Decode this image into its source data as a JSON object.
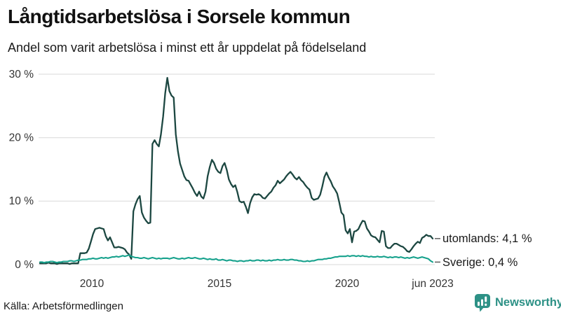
{
  "header": {
    "title": "Långtidsarbetslösa i Sorsele kommun",
    "subtitle": "Andel som varit arbetslösa i minst ett år uppdelat på födelseland"
  },
  "footer": {
    "source": "Källa: Arbetsförmedlingen",
    "brand": "Newsworthy",
    "brand_color": "#2d9186"
  },
  "chart_data": {
    "type": "line",
    "title": "Långtidsarbetslösa i Sorsele kommun",
    "subtitle": "Andel som varit arbetslösa i minst ett år uppdelat på födelseland",
    "unit": "%",
    "frequency": "monthly",
    "x_start": "2008-01",
    "x_end": "2023-06",
    "ylim": [
      0,
      30
    ],
    "grid": "horizontal",
    "legend_position": "end-of-line-labels",
    "yticks": [
      "30 %",
      "20 %",
      "10 %",
      "0 %"
    ],
    "xticks": [
      "2010",
      "2015",
      "2020",
      "jun 2023"
    ],
    "series": [
      {
        "id": "utomlands",
        "name": "utomlands",
        "end_label": "utomlands: 4,1 %",
        "last_value": "4,1 %",
        "color": "#1c4741",
        "values": [
          0.2,
          0.2,
          0.2,
          0.2,
          0.3,
          0.2,
          0.2,
          0.2,
          0.1,
          0.2,
          0.2,
          0.2,
          0.2,
          0.2,
          0.1,
          0.2,
          0.2,
          0.2,
          0.2,
          1.8,
          1.8,
          1.8,
          1.9,
          2.5,
          3.6,
          4.8,
          5.6,
          5.7,
          5.8,
          5.7,
          5.6,
          4.5,
          3.8,
          4.3,
          3.5,
          2.7,
          2.7,
          2.8,
          2.7,
          2.6,
          2.4,
          1.9,
          1.6,
          0.9,
          8.4,
          9.5,
          10.3,
          10.8,
          8.2,
          7.4,
          6.9,
          6.5,
          6.6,
          19.0,
          19.6,
          19.0,
          18.6,
          20.5,
          23.3,
          27.0,
          29.4,
          27.3,
          26.6,
          26.3,
          20.5,
          17.8,
          15.9,
          14.9,
          13.9,
          13.3,
          13.2,
          12.6,
          12.0,
          11.3,
          10.8,
          11.5,
          10.7,
          10.4,
          11.5,
          13.9,
          15.4,
          16.5,
          16.0,
          15.1,
          14.6,
          14.4,
          15.5,
          16.0,
          14.9,
          13.4,
          12.7,
          12.2,
          12.5,
          11.4,
          10.0,
          9.8,
          9.9,
          9.1,
          8.1,
          9.7,
          10.6,
          11.1,
          11.0,
          11.1,
          10.9,
          10.5,
          10.4,
          10.8,
          11.2,
          11.5,
          12.1,
          12.5,
          13.2,
          12.8,
          13.1,
          13.4,
          13.9,
          14.3,
          14.6,
          14.2,
          13.7,
          13.4,
          13.8,
          13.3,
          13.0,
          12.5,
          12.1,
          11.8,
          10.5,
          10.2,
          10.3,
          10.4,
          11.0,
          12.3,
          13.8,
          14.5,
          13.7,
          13.1,
          12.3,
          11.8,
          11.2,
          9.8,
          8.2,
          7.8,
          5.4,
          4.9,
          5.6,
          3.5,
          5.2,
          5.3,
          5.6,
          6.3,
          6.9,
          6.8,
          5.7,
          5.2,
          4.6,
          4.4,
          4.3,
          3.9,
          3.5,
          5.3,
          5.2,
          2.9,
          2.6,
          2.6,
          3.0,
          3.3,
          3.3,
          3.1,
          2.9,
          2.8,
          2.5,
          2.1,
          2.0,
          2.4,
          2.9,
          3.3,
          3.6,
          3.4,
          4.2,
          4.4,
          4.7,
          4.5,
          4.5,
          4.1
        ]
      },
      {
        "id": "sverige",
        "name": "Sverige",
        "end_label": "Sverige: 0,4 %",
        "last_value": "0,4 %",
        "color": "#16a18c",
        "values": [
          0.4,
          0.4,
          0.3,
          0.4,
          0.4,
          0.5,
          0.5,
          0.4,
          0.3,
          0.4,
          0.4,
          0.5,
          0.5,
          0.5,
          0.6,
          0.6,
          0.5,
          0.6,
          0.7,
          0.7,
          0.8,
          0.8,
          0.8,
          0.9,
          0.9,
          1.0,
          0.9,
          0.9,
          1.0,
          1.1,
          1.0,
          1.1,
          1.0,
          1.1,
          1.2,
          1.2,
          1.3,
          1.2,
          1.3,
          1.4,
          1.3,
          1.4,
          1.5,
          1.3,
          1.2,
          1.1,
          1.1,
          1.0,
          1.0,
          1.1,
          1.0,
          0.9,
          1.0,
          1.1,
          1.0,
          0.9,
          1.0,
          0.9,
          1.0,
          1.0,
          1.0,
          0.9,
          1.0,
          1.1,
          1.0,
          0.9,
          0.9,
          1.0,
          0.9,
          1.0,
          1.1,
          1.0,
          1.0,
          1.1,
          1.0,
          0.9,
          0.9,
          1.0,
          0.9,
          0.8,
          0.9,
          0.8,
          0.8,
          0.9,
          0.7,
          0.7,
          0.8,
          0.7,
          0.6,
          0.7,
          0.7,
          0.6,
          0.6,
          0.5,
          0.6,
          0.6,
          0.5,
          0.6,
          0.6,
          0.7,
          0.6,
          0.6,
          0.7,
          0.7,
          0.6,
          0.7,
          0.6,
          0.6,
          0.7,
          0.6,
          0.7,
          0.7,
          0.8,
          0.7,
          0.7,
          0.8,
          0.7,
          0.7,
          0.8,
          0.8,
          0.7,
          0.7,
          0.6,
          0.6,
          0.5,
          0.5,
          0.6,
          0.5,
          0.6,
          0.6,
          0.7,
          0.8,
          0.8,
          0.8,
          0.9,
          0.9,
          1.0,
          1.0,
          1.1,
          1.2,
          1.2,
          1.3,
          1.3,
          1.3,
          1.3,
          1.4,
          1.3,
          1.4,
          1.4,
          1.3,
          1.4,
          1.3,
          1.4,
          1.3,
          1.3,
          1.2,
          1.3,
          1.2,
          1.2,
          1.3,
          1.2,
          1.2,
          1.3,
          1.2,
          1.1,
          1.2,
          1.1,
          1.2,
          1.2,
          1.1,
          1.2,
          1.1,
          1.0,
          1.1,
          1.0,
          1.1,
          1.2,
          1.1,
          1.0,
          1.1,
          1.2,
          1.1,
          1.0,
          0.9,
          0.6,
          0.4
        ]
      }
    ]
  }
}
